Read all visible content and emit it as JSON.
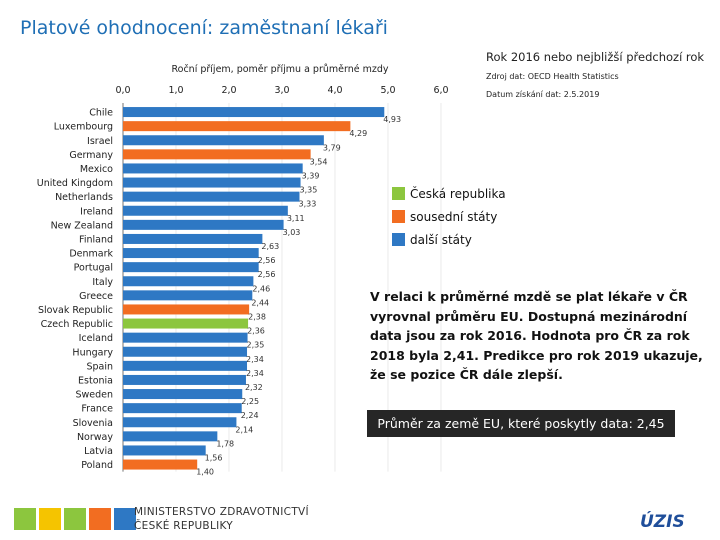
{
  "slide_title": "Platové ohodnocení: zaměstnaní lékaři",
  "right_title": "Rok 2016 nebo nejbližší předchozí rok",
  "source": "Zdroj dat: OECD Health Statistics",
  "date": "Datum získání dat: 2.5.2019",
  "legend": [
    {
      "label": "Česká republika",
      "color": "#8cc63e"
    },
    {
      "label": "sousední státy",
      "color": "#f26d21"
    },
    {
      "label": "další státy",
      "color": "#2e78c4"
    }
  ],
  "note": "V relaci k průměrné mzdě se plat lékaře v ČR vyrovnal průměru EU. Dostupná mezinárodní data jsou za rok 2016. Hodnota pro ČR za rok 2018 byla 2,41. Predikce pro rok 2019 ukazuje, že se pozice ČR dále zlepší.",
  "average_box": "Průměr za země EU, které poskytly data: 2,45",
  "ministry": [
    "MINISTERSTVO ZDRAVOTNICTVÍ",
    "ČESKÉ REPUBLIKY"
  ],
  "uzis": "ÚZIS",
  "chart_data": {
    "type": "bar",
    "orientation": "horizontal",
    "title": "Roční příjem, poměr příjmu a průměrné mzdy",
    "xlim": [
      0,
      6
    ],
    "ticks": [
      "0,0",
      "1,0",
      "2,0",
      "3,0",
      "4,0",
      "5,0",
      "6,0"
    ],
    "categories": [
      "Chile",
      "Luxembourg",
      "Israel",
      "Germany",
      "Mexico",
      "United Kingdom",
      "Netherlands",
      "Ireland",
      "New Zealand",
      "Finland",
      "Denmark",
      "Portugal",
      "Italy",
      "Greece",
      "Slovak Republic",
      "Czech Republic",
      "Iceland",
      "Hungary",
      "Spain",
      "Estonia",
      "Sweden",
      "France",
      "Slovenia",
      "Norway",
      "Latvia",
      "Poland"
    ],
    "values": [
      4.93,
      4.29,
      3.79,
      3.54,
      3.39,
      3.35,
      3.33,
      3.11,
      3.03,
      2.63,
      2.56,
      2.56,
      2.46,
      2.44,
      2.38,
      2.36,
      2.35,
      2.34,
      2.34,
      2.32,
      2.25,
      2.24,
      2.14,
      1.78,
      1.56,
      1.4
    ],
    "labels": [
      "4,93",
      "4,29",
      "3,79",
      "3,54",
      "3,39",
      "3,35",
      "3,33",
      "3,11",
      "3,03",
      "2,63",
      "2,56",
      "2,56",
      "2,46",
      "2,44",
      "2,38",
      "2,36",
      "2,35",
      "2,34",
      "2,34",
      "2,32",
      "2,25",
      "2,24",
      "2,14",
      "1,78",
      "1,56",
      "1,40"
    ],
    "groups": [
      "other",
      "neighbor",
      "other",
      "neighbor",
      "other",
      "other",
      "other",
      "other",
      "other",
      "other",
      "other",
      "other",
      "other",
      "other",
      "neighbor",
      "cz",
      "other",
      "other",
      "other",
      "other",
      "other",
      "other",
      "other",
      "other",
      "other",
      "neighbor"
    ],
    "colors": {
      "cz": "#8cc63e",
      "neighbor": "#f26d21",
      "other": "#2e78c4"
    }
  }
}
